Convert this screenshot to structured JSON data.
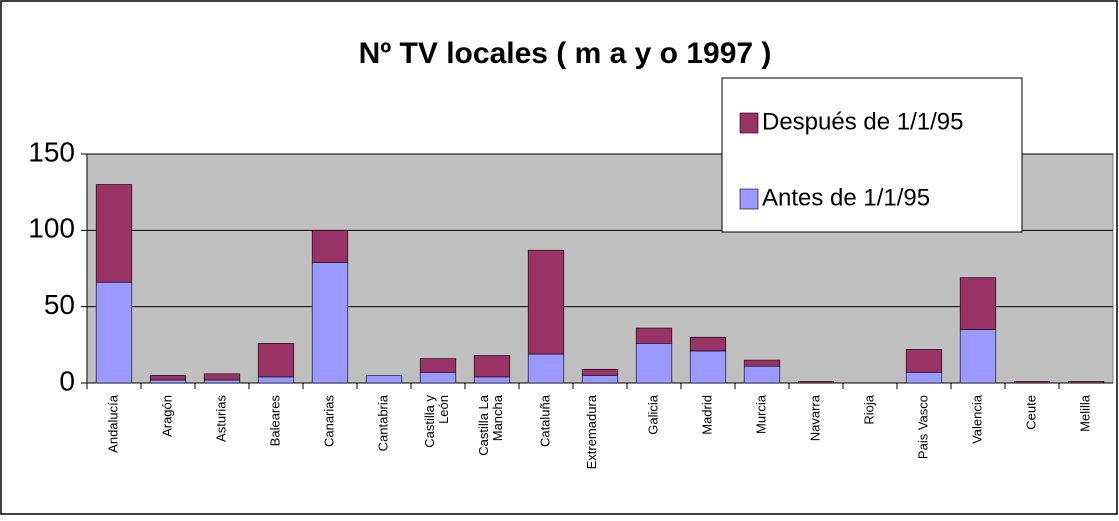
{
  "chart_data": {
    "type": "stacked_bar",
    "title": "Nº  TV locales ( m a y o 1997 )",
    "categories": [
      "Andalucía",
      "Aragón",
      "Asturias",
      "Baleares",
      "Canarias",
      "Cantabria",
      "Castilla y León",
      "Castilla La Mancha",
      "Cataluña",
      "Extremadura",
      "Galicia",
      "Madrid",
      "Murcia",
      "Navarra",
      "Rioja",
      "Pais Vasco",
      "Valencia",
      "Ceute",
      "Melilla"
    ],
    "series": [
      {
        "name": "Antes de 1/1/95",
        "color": "#9999ff",
        "values": [
          66,
          2,
          2,
          4,
          79,
          5,
          7,
          4,
          19,
          5,
          26,
          21,
          11,
          0,
          0,
          7,
          35,
          0,
          0
        ]
      },
      {
        "name": "Después de 1/1/95",
        "color": "#993366",
        "values": [
          64,
          3,
          4,
          22,
          21,
          0,
          9,
          14,
          68,
          4,
          10,
          9,
          4,
          1,
          0,
          15,
          34,
          1,
          1
        ]
      }
    ],
    "ylim": [
      0,
      150
    ],
    "yticks": [
      0,
      50,
      100,
      150
    ],
    "grid": true,
    "legend": "top-right"
  }
}
